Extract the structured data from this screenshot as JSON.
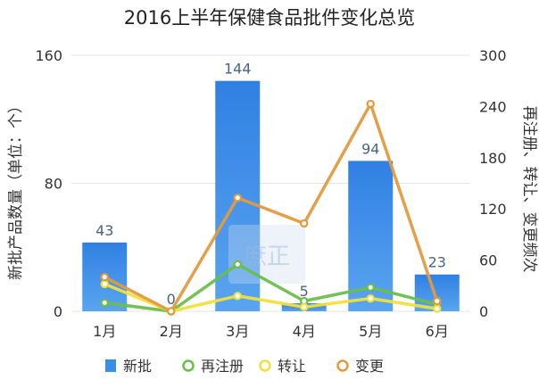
{
  "chart_data": {
    "type": "bar",
    "title": "2016上半年保健食品批件变化总览",
    "categories": [
      "1月",
      "2月",
      "3月",
      "4月",
      "5月",
      "6月"
    ],
    "ylabel": "新批产品数量（单位：个）",
    "y2label": "再注册、转让、变更频次",
    "ylim": [
      0,
      160
    ],
    "y2lim": [
      0,
      300
    ],
    "yticks": [
      "0",
      "80",
      "160"
    ],
    "y2ticks": [
      "0",
      "60",
      "120",
      "180",
      "240",
      "300"
    ],
    "grid": true,
    "legend": "bottom",
    "series": [
      {
        "name": "新批",
        "type": "bar",
        "axis": "left",
        "color": "#3a8ee6",
        "values": [
          43,
          0,
          144,
          5,
          94,
          23
        ],
        "show_labels": true
      },
      {
        "name": "再注册",
        "type": "line",
        "axis": "right",
        "color": "#6abf4b",
        "values": [
          10,
          0,
          55,
          12,
          28,
          8
        ]
      },
      {
        "name": "转让",
        "type": "line",
        "axis": "right",
        "color": "#f1e03c",
        "values": [
          32,
          0,
          18,
          5,
          15,
          3
        ]
      },
      {
        "name": "变更",
        "type": "line",
        "axis": "right",
        "color": "#e39a3f",
        "values": [
          40,
          0,
          133,
          103,
          243,
          12
        ]
      }
    ]
  },
  "watermark": {
    "text": "庶正"
  }
}
